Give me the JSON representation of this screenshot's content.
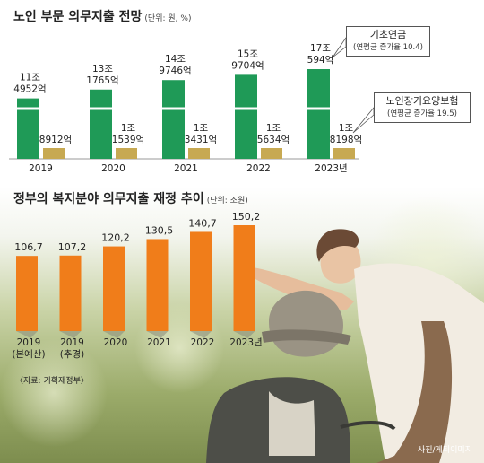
{
  "chart1": {
    "title": "노인 부문 의무지출 전망",
    "unit": "(단위: 원, %)"
  },
  "chart2": {
    "title": "정부의 복지분야 의무지출 재정 추이",
    "unit": "(단위: 조원)"
  },
  "callouts": {
    "pension": {
      "name": "기초연금",
      "rate": "(연평균 증가율 10.4)"
    },
    "ltc": {
      "name": "노인장기요양보험",
      "rate": "(연평균 증가율 19.5)"
    }
  },
  "source_note": "〈자료: 기획재정부〉",
  "photo_credit": "사진/게티이미지",
  "colors": {
    "green": "#1f9a57",
    "gold": "#c7a952",
    "orange": "#f07d1a"
  },
  "chart_data": [
    {
      "type": "bar",
      "title": "노인 부문 의무지출 전망",
      "unit": "(단위: 원, %)",
      "categories": [
        "2019",
        "2020",
        "2021",
        "2022",
        "2023년"
      ],
      "series": [
        {
          "name": "기초연금",
          "values": [
            11.4952,
            13.1765,
            14.9746,
            15.9704,
            17.0594
          ],
          "labels": [
            [
              "11조",
              "4952억"
            ],
            [
              "13조",
              "1765억"
            ],
            [
              "14조",
              "9746억"
            ],
            [
              "15조",
              "9704억"
            ],
            [
              "17조",
              "594억"
            ]
          ]
        },
        {
          "name": "노인장기요양보험",
          "values": [
            0.8912,
            1.1539,
            1.3431,
            1.5634,
            1.8198
          ],
          "labels": [
            [
              "8912억"
            ],
            [
              "1조",
              "1539억"
            ],
            [
              "1조",
              "3431억"
            ],
            [
              "1조",
              "5634억"
            ],
            [
              "1조",
              "8198억"
            ]
          ]
        }
      ]
    },
    {
      "type": "bar",
      "title": "정부의 복지분야 의무지출 재정 추이",
      "unit": "(단위: 조원)",
      "categories": [
        [
          "2019",
          "(본예산)"
        ],
        [
          "2019",
          "(추경)"
        ],
        [
          "2020"
        ],
        [
          "2021"
        ],
        [
          "2022"
        ],
        [
          "2023년"
        ]
      ],
      "values": [
        106.7,
        107.2,
        120.2,
        130.5,
        140.7,
        150.2
      ],
      "value_labels": [
        "106,7",
        "107,2",
        "120,2",
        "130,5",
        "140,7",
        "150,2"
      ]
    }
  ]
}
